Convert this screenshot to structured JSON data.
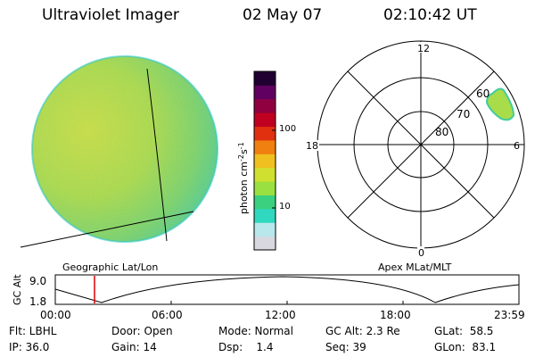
{
  "header": {
    "title": "Ultraviolet Imager",
    "date": "02 May 07",
    "time": "02:10:42 UT"
  },
  "colorbar": {
    "label": "photon cm",
    "exp1": "-2",
    "s": "s",
    "exp2": "-1",
    "ticks": [
      "100",
      "10"
    ],
    "colors": [
      "#d8d8e0",
      "#b8e8ec",
      "#30d8c0",
      "#3ad080",
      "#9ae040",
      "#d0e030",
      "#f0c020",
      "#f08010",
      "#e03010",
      "#c00020",
      "#900040",
      "#600060",
      "#200030"
    ]
  },
  "polar_plot": {
    "mlt_labels": {
      "top": "12",
      "left": "18",
      "right": "6",
      "bottom": "0"
    },
    "lat_labels": [
      "60",
      "70",
      "80"
    ]
  },
  "panel_labels": {
    "left": "Geographic Lat/Lon",
    "right": "Apex MLat/MLT"
  },
  "altitude_plot": {
    "ylabel": "GC Alt",
    "ytick_top": "9.0",
    "ytick_bottom": "1.8",
    "xticks": [
      "00:00",
      "06:00",
      "12:00",
      "18:00",
      "23:59"
    ],
    "marker_color": "#e00000"
  },
  "info": {
    "flt": "Flt: LBHL",
    "ip": "IP: 36.0",
    "door": "Door: Open",
    "gain": "Gain: 14",
    "mode": "Mode: Normal",
    "dsp": "Dsp:    1.4",
    "gcalt": "GC Alt: 2.3 Re",
    "seq": "Seq: 39",
    "glat": "GLat:  58.5",
    "glon": "GLon:  83.1"
  }
}
